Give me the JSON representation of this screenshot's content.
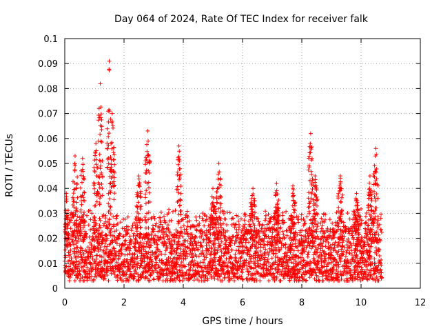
{
  "chart_data": {
    "type": "scatter",
    "title": "Day 064 of 2024, Rate Of TEC Index for receiver falk",
    "xlabel": "GPS time / hours",
    "ylabel": "ROTI / TECUs",
    "xlim": [
      0,
      12
    ],
    "ylim": [
      0,
      0.1
    ],
    "xticks": [
      "0",
      "2",
      "4",
      "6",
      "8",
      "10",
      "12"
    ],
    "yticks": [
      "0",
      "0.01",
      "0.02",
      "0.03",
      "0.04",
      "0.05",
      "0.06",
      "0.07",
      "0.08",
      "0.09",
      "0.1"
    ],
    "grid": true,
    "marker": "+",
    "marker_color": "#ff0000",
    "series": [
      {
        "x_range": [
          0.0,
          10.7
        ],
        "baseline_range": [
          0.004,
          0.03
        ],
        "peaks": [
          {
            "x": 0.05,
            "y": 0.038
          },
          {
            "x": 0.35,
            "y": 0.053
          },
          {
            "x": 0.6,
            "y": 0.052
          },
          {
            "x": 1.2,
            "y": 0.082
          },
          {
            "x": 1.5,
            "y": 0.091
          },
          {
            "x": 1.6,
            "y": 0.07
          },
          {
            "x": 1.05,
            "y": 0.058
          },
          {
            "x": 2.8,
            "y": 0.063
          },
          {
            "x": 2.5,
            "y": 0.045
          },
          {
            "x": 3.85,
            "y": 0.057
          },
          {
            "x": 5.2,
            "y": 0.05
          },
          {
            "x": 5.0,
            "y": 0.04
          },
          {
            "x": 6.35,
            "y": 0.04
          },
          {
            "x": 7.15,
            "y": 0.042
          },
          {
            "x": 7.7,
            "y": 0.041
          },
          {
            "x": 8.3,
            "y": 0.062
          },
          {
            "x": 8.45,
            "y": 0.045
          },
          {
            "x": 9.3,
            "y": 0.045
          },
          {
            "x": 9.85,
            "y": 0.038
          },
          {
            "x": 10.5,
            "y": 0.056
          },
          {
            "x": 10.3,
            "y": 0.045
          }
        ]
      }
    ]
  }
}
